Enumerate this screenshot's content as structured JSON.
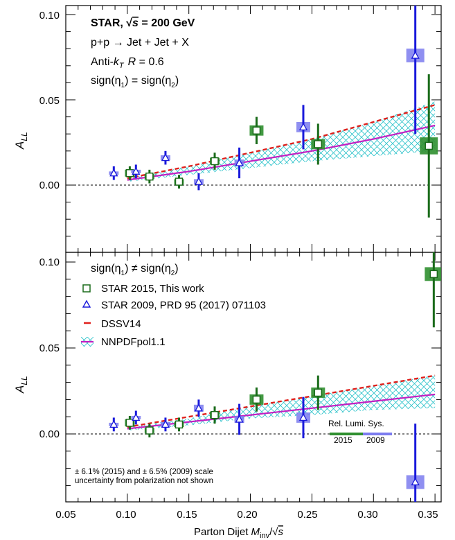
{
  "colors": {
    "star2015": "#1a6b1a",
    "star2009": "#1a1adb",
    "sys2009": "#7b7bef",
    "sys2015": "#2f8f2f",
    "dssv": "#e0201c",
    "nnpdf": "#c21fc2",
    "band": "#33c4cc"
  },
  "x_axis": {
    "ticks": [
      "0.05",
      "0.10",
      "0.15",
      "0.20",
      "0.25",
      "0.30",
      "0.35"
    ],
    "title_prefix": "Parton Dijet ",
    "title_m": "M",
    "title_sub": "inv",
    "title_slash": "/",
    "title_sqrt": "√",
    "title_s": "s"
  },
  "top_panel": {
    "ylabel": "A",
    "ylabel_sub": "LL",
    "yticks": [
      "0.00",
      "0.05",
      "0.10"
    ],
    "experiment_bold": "STAR,  ",
    "sqrt_sym": "√",
    "s_sym": "s",
    "energy": " = 200 GeV",
    "process": "p+p → Jet + Jet + X",
    "algo_prefix": "Anti-",
    "algo_k": "k",
    "algo_sub": "T",
    "algo_R": "R",
    "algo_val": " = 0.6",
    "topology_a": "sign(η",
    "topology_sub1": "1",
    "topology_mid": ") = sign(η",
    "topology_sub2": "2",
    "topology_end": ")"
  },
  "bottom_panel": {
    "ylabel": "A",
    "ylabel_sub": "LL",
    "yticks": [
      "0.00",
      "0.05",
      "0.10"
    ],
    "topology_a": "sign(η",
    "topology_sub1": "1",
    "topology_mid": ") ≠ sign(η",
    "topology_sub2": "2",
    "topology_end": ")",
    "legend": {
      "star2015": "STAR 2015, This work",
      "star2009": "STAR 2009, PRD 95 (2017) 071103",
      "dssv": "DSSV14",
      "nnpdf": "NNPDFpol1.1"
    },
    "lumi_title": "Rel. Lumi. Sys.",
    "lumi_2015": "2015",
    "lumi_2009": "2009",
    "note_line1": "± 6.1% (2015) and ± 6.5% (2009) scale",
    "note_line2": "uncertainty from polarization not shown"
  },
  "chart_data": [
    {
      "type": "scatter",
      "panel": "top",
      "xlim": [
        0.05,
        0.355
      ],
      "ylim": [
        -0.02,
        0.105
      ],
      "series": [
        {
          "name": "STAR 2015, This work",
          "marker": "open-square",
          "points": [
            {
              "x": 0.102,
              "y": 0.007,
              "err": 0.004,
              "sys": 0.002
            },
            {
              "x": 0.118,
              "y": 0.005,
              "err": 0.004,
              "sys": 0.0015
            },
            {
              "x": 0.142,
              "y": 0.002,
              "err": 0.004,
              "sys": 0.0015
            },
            {
              "x": 0.171,
              "y": 0.014,
              "err": 0.005,
              "sys": 0.002
            },
            {
              "x": 0.205,
              "y": 0.032,
              "err": 0.008,
              "sys": 0.003
            },
            {
              "x": 0.255,
              "y": 0.024,
              "err": 0.012,
              "sys": 0.003
            },
            {
              "x": 0.345,
              "y": 0.023,
              "err": 0.042,
              "sys": 0.005
            }
          ]
        },
        {
          "name": "STAR 2009, PRD 95 (2017) 071103",
          "marker": "open-triangle",
          "points": [
            {
              "x": 0.089,
              "y": 0.007,
              "err": 0.004,
              "sys": 0.001
            },
            {
              "x": 0.107,
              "y": 0.008,
              "err": 0.004,
              "sys": 0.001
            },
            {
              "x": 0.131,
              "y": 0.016,
              "err": 0.004,
              "sys": 0.0015
            },
            {
              "x": 0.158,
              "y": 0.002,
              "err": 0.005,
              "sys": 0.0015
            },
            {
              "x": 0.191,
              "y": 0.013,
              "err": 0.009,
              "sys": 0.002
            },
            {
              "x": 0.243,
              "y": 0.034,
              "err": 0.013,
              "sys": 0.003
            },
            {
              "x": 0.334,
              "y": 0.076,
              "err": 0.046,
              "sys": 0.004
            }
          ]
        }
      ],
      "theory": {
        "x": [
          0.1,
          0.15,
          0.2,
          0.25,
          0.3,
          0.35
        ],
        "dssv": [
          0.004,
          0.011,
          0.019,
          0.027,
          0.037,
          0.047
        ],
        "nnpdf": [
          0.003,
          0.008,
          0.014,
          0.02,
          0.027,
          0.035
        ],
        "nnpdf_low": [
          0.002,
          0.006,
          0.01,
          0.014,
          0.017,
          0.02
        ],
        "nnpdf_high": [
          0.004,
          0.011,
          0.019,
          0.027,
          0.037,
          0.049
        ]
      }
    },
    {
      "type": "scatter",
      "panel": "bottom",
      "xlim": [
        0.05,
        0.355
      ],
      "ylim": [
        -0.04,
        0.105
      ],
      "series": [
        {
          "name": "STAR 2015, This work",
          "marker": "open-square",
          "points": [
            {
              "x": 0.102,
              "y": 0.0065,
              "err": 0.004,
              "sys": 0.002
            },
            {
              "x": 0.118,
              "y": 0.002,
              "err": 0.004,
              "sys": 0.0015
            },
            {
              "x": 0.142,
              "y": 0.0055,
              "err": 0.004,
              "sys": 0.0015
            },
            {
              "x": 0.171,
              "y": 0.011,
              "err": 0.005,
              "sys": 0.002
            },
            {
              "x": 0.205,
              "y": 0.02,
              "err": 0.007,
              "sys": 0.003
            },
            {
              "x": 0.255,
              "y": 0.024,
              "err": 0.01,
              "sys": 0.003
            },
            {
              "x": 0.349,
              "y": 0.093,
              "err": 0.031,
              "sys": 0.004
            }
          ]
        },
        {
          "name": "STAR 2009, PRD 95 (2017) 071103",
          "marker": "open-triangle",
          "points": [
            {
              "x": 0.089,
              "y": 0.0055,
              "err": 0.004,
              "sys": 0.001
            },
            {
              "x": 0.107,
              "y": 0.0095,
              "err": 0.004,
              "sys": 0.001
            },
            {
              "x": 0.131,
              "y": 0.0055,
              "err": 0.004,
              "sys": 0.0015
            },
            {
              "x": 0.158,
              "y": 0.015,
              "err": 0.005,
              "sys": 0.002
            },
            {
              "x": 0.191,
              "y": 0.0085,
              "err": 0.009,
              "sys": 0.002
            },
            {
              "x": 0.243,
              "y": 0.0095,
              "err": 0.012,
              "sys": 0.003
            },
            {
              "x": 0.334,
              "y": -0.028,
              "err": 0.034,
              "sys": 0.004
            }
          ]
        }
      ],
      "theory": {
        "x": [
          0.1,
          0.15,
          0.2,
          0.25,
          0.3,
          0.35
        ],
        "dssv": [
          0.004,
          0.01,
          0.016,
          0.022,
          0.028,
          0.034
        ],
        "nnpdf": [
          0.003,
          0.007,
          0.011,
          0.015,
          0.019,
          0.023
        ],
        "nnpdf_low": [
          0.002,
          0.005,
          0.009,
          0.011,
          0.014,
          0.015
        ],
        "nnpdf_high": [
          0.004,
          0.009,
          0.016,
          0.022,
          0.028,
          0.034
        ]
      }
    }
  ]
}
